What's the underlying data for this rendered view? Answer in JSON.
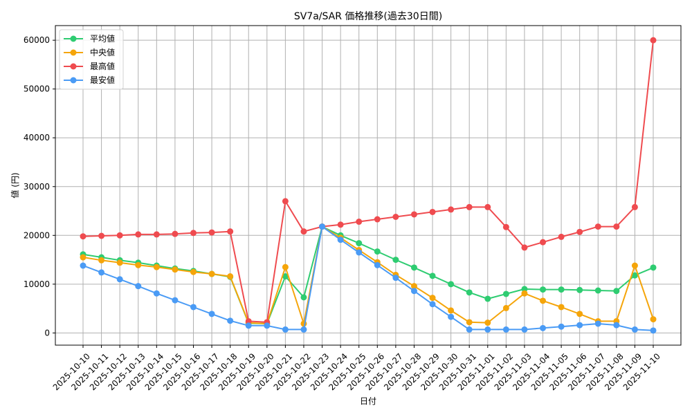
{
  "chart_data": {
    "type": "line",
    "title": "SV7a/SAR 価格推移(過去30日間)",
    "xlabel": "日付",
    "ylabel": "値 (円)",
    "ylim": [
      -2500,
      63000
    ],
    "yticks": [
      0,
      10000,
      20000,
      30000,
      40000,
      50000,
      60000
    ],
    "grid": true,
    "legend_position": "upper left",
    "categories": [
      "2025-10-10",
      "2025-10-11",
      "2025-10-12",
      "2025-10-13",
      "2025-10-14",
      "2025-10-15",
      "2025-10-16",
      "2025-10-17",
      "2025-10-18",
      "2025-10-19",
      "2025-10-20",
      "2025-10-21",
      "2025-10-22",
      "2025-10-23",
      "2025-10-24",
      "2025-10-25",
      "2025-10-26",
      "2025-10-27",
      "2025-10-28",
      "2025-10-29",
      "2025-10-30",
      "2025-10-31",
      "2025-11-01",
      "2025-11-02",
      "2025-11-03",
      "2025-11-04",
      "2025-11-05",
      "2025-11-06",
      "2025-11-07",
      "2025-11-08",
      "2025-11-09",
      "2025-11-10"
    ],
    "series": [
      {
        "name": "平均値",
        "color": "#2ecc71",
        "values": [
          16100,
          15500,
          14900,
          14400,
          13800,
          13200,
          12700,
          12100,
          11500,
          2000,
          1900,
          11600,
          7300,
          21800,
          20000,
          18400,
          16700,
          15000,
          13400,
          11700,
          10000,
          8300,
          7000,
          8000,
          9000,
          8900,
          8900,
          8800,
          8700,
          8600,
          11800,
          13400
        ]
      },
      {
        "name": "中央値",
        "color": "#f5a50a",
        "values": [
          15500,
          14900,
          14400,
          13900,
          13500,
          13000,
          12500,
          12100,
          11600,
          2100,
          1900,
          13500,
          1900,
          21800,
          19500,
          17000,
          14500,
          11900,
          9600,
          7200,
          4600,
          2200,
          2100,
          5100,
          8100,
          6600,
          5300,
          3900,
          2400,
          2400,
          13800,
          2800
        ]
      },
      {
        "name": "最高値",
        "color": "#ef4b4f",
        "values": [
          19800,
          19900,
          20000,
          20200,
          20200,
          20300,
          20500,
          20600,
          20800,
          2400,
          2200,
          27000,
          20800,
          21800,
          22200,
          22800,
          23300,
          23800,
          24300,
          24800,
          25300,
          25800,
          25800,
          21700,
          17500,
          18600,
          19700,
          20700,
          21800,
          21800,
          25800,
          60000
        ]
      },
      {
        "name": "最安値",
        "color": "#4a9bf5",
        "values": [
          13800,
          12400,
          11000,
          9600,
          8100,
          6700,
          5300,
          3900,
          2500,
          1500,
          1500,
          700,
          700,
          21800,
          19100,
          16500,
          13900,
          11300,
          8600,
          5900,
          3300,
          700,
          700,
          700,
          700,
          1000,
          1300,
          1600,
          1900,
          1600,
          700,
          500
        ]
      }
    ]
  }
}
